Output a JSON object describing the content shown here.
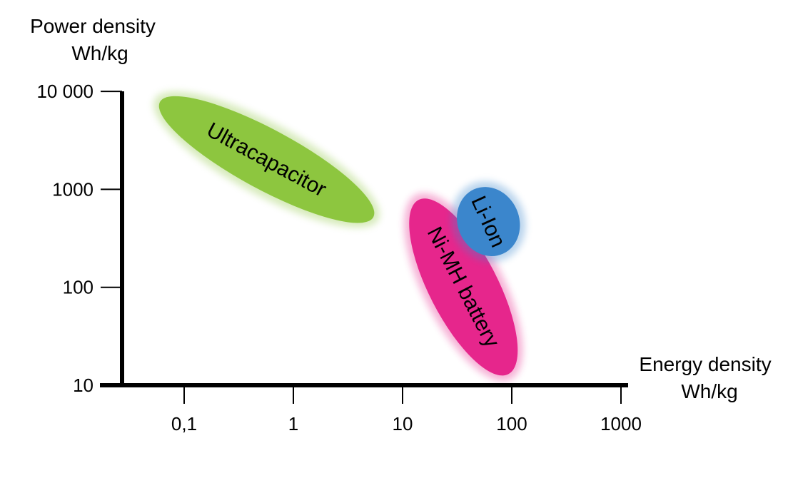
{
  "chart_data": {
    "type": "scatter",
    "subtype": "region-plot (Ragone chart)",
    "xscale": "log",
    "yscale": "log",
    "xlim": [
      0.03,
      1000
    ],
    "ylim": [
      10,
      10000
    ],
    "x_axis_title": [
      "Energy density",
      "Wh/kg"
    ],
    "y_axis_title": [
      "Power density",
      "Wh/kg"
    ],
    "x_ticks": [
      {
        "value": 0.1,
        "label": "0,1"
      },
      {
        "value": 1,
        "label": "1"
      },
      {
        "value": 10,
        "label": "10"
      },
      {
        "value": 100,
        "label": "100"
      },
      {
        "value": 1000,
        "label": "1000"
      }
    ],
    "y_ticks": [
      {
        "value": 10000,
        "label": "10 000"
      },
      {
        "value": 1000,
        "label": "1000"
      },
      {
        "value": 100,
        "label": "100"
      },
      {
        "value": 10,
        "label": "10"
      }
    ],
    "grid": false,
    "legend": "none",
    "regions": [
      {
        "name": "Ultracapacitor",
        "color": "#8dc63f",
        "x_range": [
          0.05,
          6
        ],
        "y_range": [
          450,
          9000
        ]
      },
      {
        "name": "Ni-MH battery",
        "color": "#e6268c",
        "x_range": [
          10,
          100
        ],
        "y_range": [
          10,
          1000
        ]
      },
      {
        "name": "Li-Ion",
        "color": "#3b86cc",
        "x_range": [
          35,
          100
        ],
        "y_range": [
          190,
          1200
        ]
      }
    ]
  }
}
